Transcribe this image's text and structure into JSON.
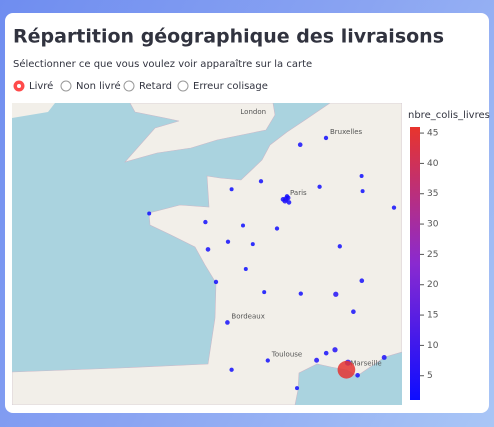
{
  "header": {
    "title": "Répartition géographique des livraisons",
    "subtitle": "Sélectionner ce que vous voulez voir apparaître sur la carte"
  },
  "radio": {
    "options": [
      "Livré",
      "Non livré",
      "Retard",
      "Erreur colisage"
    ],
    "selected": 0
  },
  "map": {
    "labels": [
      {
        "name": "London",
        "lon": -0.13,
        "lat": 51.5
      },
      {
        "name": "Paris",
        "lon": 2.35,
        "lat": 48.86
      },
      {
        "name": "Bordeaux",
        "lon": -0.58,
        "lat": 44.84
      },
      {
        "name": "Toulouse",
        "lon": 1.44,
        "lat": 43.6
      },
      {
        "name": "Marseille",
        "lon": 5.37,
        "lat": 43.3
      },
      {
        "name": "Bruxelles",
        "lon": 4.35,
        "lat": 50.85
      }
    ],
    "points": [
      {
        "lon": 2.35,
        "lat": 48.86,
        "value": 6
      },
      {
        "lon": 2.3,
        "lat": 48.8,
        "value": 5
      },
      {
        "lon": 2.45,
        "lat": 48.9,
        "value": 4
      },
      {
        "lon": 2.2,
        "lat": 48.85,
        "value": 3
      },
      {
        "lon": 2.5,
        "lat": 48.75,
        "value": 3
      },
      {
        "lon": 2.4,
        "lat": 48.95,
        "value": 2
      },
      {
        "lon": 3.06,
        "lat": 50.63,
        "value": 3
      },
      {
        "lon": 1.1,
        "lat": 49.44,
        "value": 2
      },
      {
        "lon": -0.37,
        "lat": 49.18,
        "value": 1
      },
      {
        "lon": -1.68,
        "lat": 48.11,
        "value": 2
      },
      {
        "lon": -4.49,
        "lat": 48.39,
        "value": 1
      },
      {
        "lon": -1.55,
        "lat": 47.22,
        "value": 3
      },
      {
        "lon": -0.55,
        "lat": 47.47,
        "value": 2
      },
      {
        "lon": 0.69,
        "lat": 47.39,
        "value": 1
      },
      {
        "lon": 1.9,
        "lat": 47.9,
        "value": 2
      },
      {
        "lon": -1.15,
        "lat": 46.16,
        "value": 2
      },
      {
        "lon": -0.58,
        "lat": 44.84,
        "value": 3
      },
      {
        "lon": 1.44,
        "lat": 43.6,
        "value": 2
      },
      {
        "lon": 3.88,
        "lat": 43.61,
        "value": 4
      },
      {
        "lon": 4.36,
        "lat": 43.84,
        "value": 3
      },
      {
        "lon": 4.8,
        "lat": 43.95,
        "value": 5
      },
      {
        "lon": 5.45,
        "lat": 43.53,
        "value": 8
      },
      {
        "lon": 5.93,
        "lat": 43.12,
        "value": 3
      },
      {
        "lon": 7.26,
        "lat": 43.7,
        "value": 4
      },
      {
        "lon": 4.84,
        "lat": 45.76,
        "value": 5
      },
      {
        "lon": 5.72,
        "lat": 45.19,
        "value": 3
      },
      {
        "lon": 5.04,
        "lat": 47.32,
        "value": 2
      },
      {
        "lon": 7.75,
        "lat": 48.58,
        "value": 2
      },
      {
        "lon": 6.18,
        "lat": 49.12,
        "value": 1
      },
      {
        "lon": 4.03,
        "lat": 49.26,
        "value": 2
      },
      {
        "lon": 3.09,
        "lat": 45.78,
        "value": 2
      },
      {
        "lon": 1.26,
        "lat": 45.83,
        "value": 1
      },
      {
        "lon": 0.34,
        "lat": 46.58,
        "value": 1
      },
      {
        "lon": -0.37,
        "lat": 43.3,
        "value": 2
      },
      {
        "lon": 2.9,
        "lat": 42.7,
        "value": 1
      },
      {
        "lon": 4.35,
        "lat": 50.85,
        "value": 2
      },
      {
        "lon": 6.13,
        "lat": 49.61,
        "value": 1
      },
      {
        "lon": 6.14,
        "lat": 46.2,
        "value": 3
      },
      {
        "lon": 0.2,
        "lat": 48.0,
        "value": 1
      },
      {
        "lon": 5.37,
        "lat": 43.3,
        "value": 45
      }
    ]
  },
  "colorbar": {
    "title": "nbre_colis_livres",
    "lim": [
      1,
      46
    ],
    "ticks": [
      5,
      10,
      15,
      20,
      25,
      30,
      35,
      40,
      45
    ],
    "colorscale": [
      "#0d0dff",
      "#8a2ad0",
      "#e8342c"
    ]
  }
}
